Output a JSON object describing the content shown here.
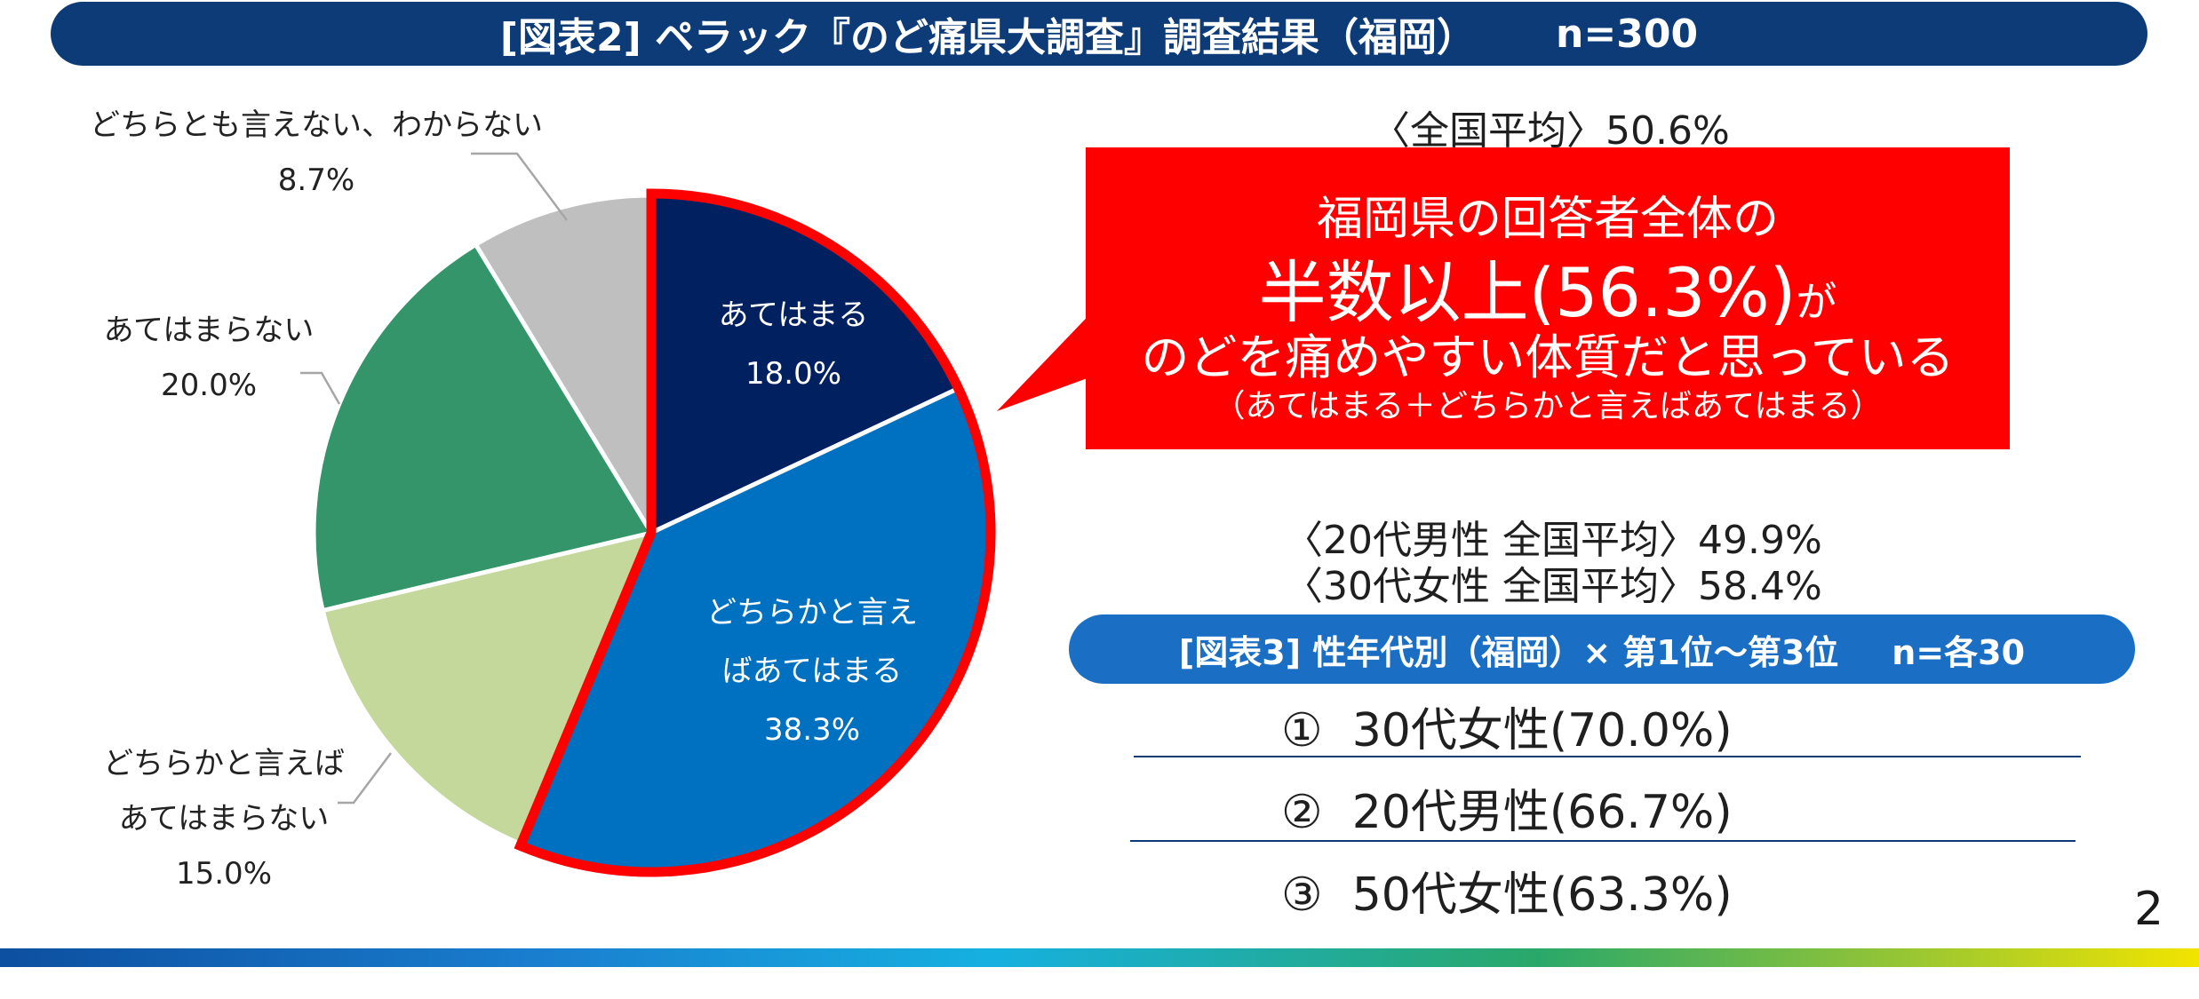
{
  "header": {
    "title": "[図表2] ペラック『のど痛県大調査』調査結果（福岡）",
    "sample": "n=300"
  },
  "chart_data": {
    "type": "pie",
    "start": "12 o'clock, clockwise",
    "slices": [
      {
        "label": "あてはまる",
        "value": 18.0,
        "value_text": "18.0%",
        "color": "#002060",
        "highlighted": true
      },
      {
        "label": "どちらかと言えばあてはまる",
        "value": 38.3,
        "value_text": "38.3%",
        "color": "#0070c0",
        "highlighted": true
      },
      {
        "label": "どちらかと言えばあてはまらない",
        "value": 15.0,
        "value_text": "15.0%",
        "color": "#c5d89b"
      },
      {
        "label": "あてはまらない",
        "value": 20.0,
        "value_text": "20.0%",
        "color": "#34956a"
      },
      {
        "label": "どちらとも言えない、わからない",
        "value": 8.7,
        "value_text": "8.7%",
        "color": "#bfbfbf"
      }
    ],
    "highlight_color": "#ff0000"
  },
  "labels": {
    "s0": "あてはまる\n18.0%",
    "s1": "どちらかと言え\nばあてはまる\n38.3%",
    "s2": "どちらかと言えば\nあてはまらない\n15.0%",
    "s3": "あてはまらない\n20.0%",
    "s4": "どちらとも言えない、わからない\n8.7%"
  },
  "national_avg": "〈全国平均〉50.6%",
  "callout": {
    "line1": "福岡県の回答者全体の",
    "line2_main": "半数以上(56.3%)",
    "line2_tail": "が",
    "line3": "のどを痛めやすい体質だと思っている",
    "line4": "（あてはまる＋どちらかと言えばあてはまる）",
    "color": "#ff0000"
  },
  "sub_avgs": {
    "male20": "〈20代男性 全国平均〉49.9%",
    "female30": "〈30代女性 全国平均〉58.4%"
  },
  "ranking": {
    "title": "[図表3] 性年代別（福岡）×  第1位〜第3位",
    "sample": "n=各30",
    "items": [
      {
        "mark": "①",
        "text": "30代女性(70.0%)"
      },
      {
        "mark": "②",
        "text": "20代男性(66.7%)"
      },
      {
        "mark": "③",
        "text": "50代女性(63.3%)"
      }
    ]
  },
  "page_number": "2"
}
